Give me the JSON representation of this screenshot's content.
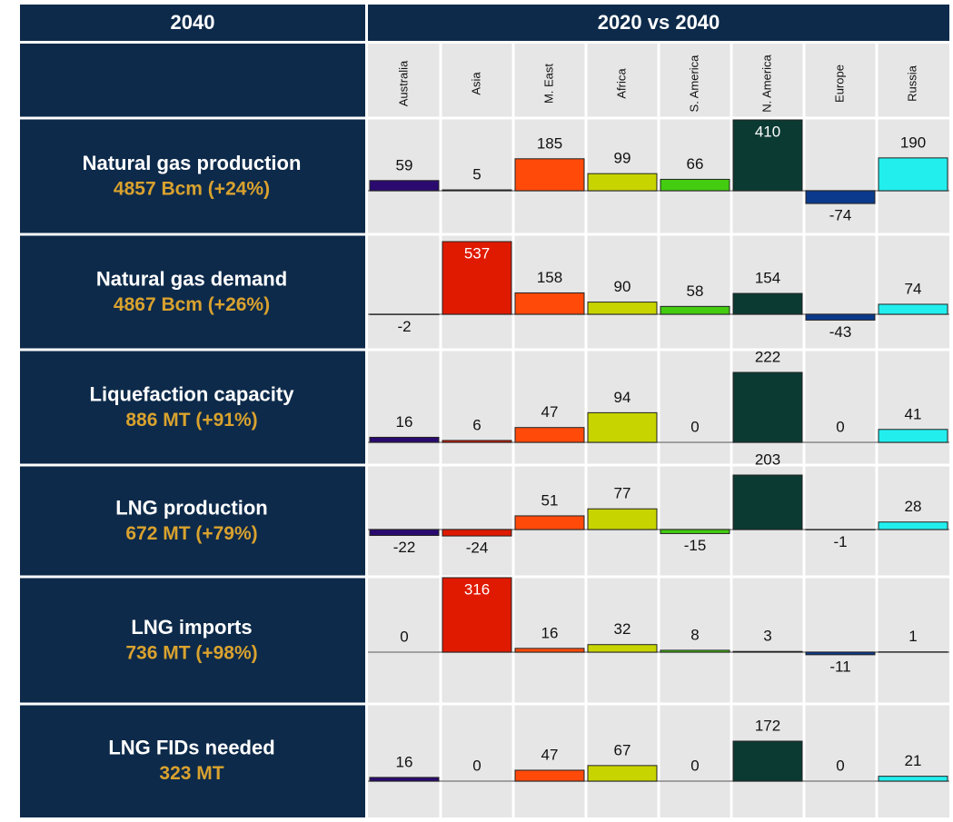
{
  "header": {
    "left": "2040",
    "right": "2020 vs 2040"
  },
  "regions": [
    "Australia",
    "Asia",
    "M. East",
    "Africa",
    "S. America",
    "N. America",
    "Europe",
    "Russia"
  ],
  "colors": [
    "#2b0a70",
    "#e01a00",
    "#ff4a0a",
    "#c8d400",
    "#44cc11",
    "#0b3a33",
    "#0b3a8c",
    "#22eeee"
  ],
  "rows": [
    {
      "label": "Natural gas production",
      "total": "4857 Bcm (+24%)",
      "values": [
        59,
        5,
        185,
        99,
        66,
        410,
        -74,
        190
      ]
    },
    {
      "label": "Natural gas demand",
      "total": "4867 Bcm (+26%)",
      "values": [
        -2,
        537,
        158,
        90,
        58,
        154,
        -43,
        74
      ]
    },
    {
      "label": "Liquefaction capacity",
      "total": "886 MT (+91%)",
      "values": [
        16,
        6,
        47,
        94,
        0,
        222,
        0,
        41
      ]
    },
    {
      "label": "LNG production",
      "total": "672 MT (+79%)",
      "values": [
        -22,
        -24,
        51,
        77,
        -15,
        203,
        -1,
        28
      ]
    },
    {
      "label": "LNG imports",
      "total": "736 MT (+98%)",
      "values": [
        0,
        316,
        16,
        32,
        8,
        3,
        -11,
        1
      ]
    },
    {
      "label": "LNG FIDs needed",
      "total": "323 MT",
      "values": [
        16,
        0,
        47,
        67,
        0,
        172,
        0,
        21
      ]
    }
  ]
}
